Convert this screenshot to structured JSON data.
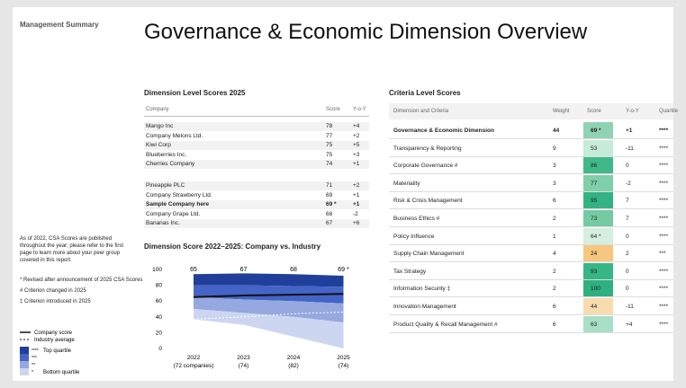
{
  "sidebar": {
    "heading": "Management Summary",
    "note": "As of 2022, CSA Scores are published throughout the year; please refer to the first page to learn more about your peer group covered in this report.",
    "footnotes": [
      "* Revised after announcement of 2025 CSA Scores",
      "# Criterion changed in 2025",
      "‡ Criterion introduced in 2025"
    ]
  },
  "title": "Governance & Economic Dimension Overview",
  "dimension_table": {
    "title": "Dimension Level Scores 2025",
    "columns": [
      "Company",
      "Score",
      "Y-o-Y"
    ],
    "groups": [
      [
        [
          "Mango Inc",
          "78",
          "+4"
        ],
        [
          "Company Melons Ltd.",
          "77",
          "+2"
        ],
        [
          "Kiwi Corp",
          "75",
          "+5"
        ],
        [
          "Blueberries Inc.",
          "75",
          "+3"
        ],
        [
          "Cherries Company",
          "74",
          "+1"
        ]
      ],
      [
        [
          "Pineapple PLC",
          "71",
          "+2"
        ],
        [
          "Company Strawberry Ltd.",
          "69",
          "+1"
        ],
        [
          "Sample Company here",
          "69 *",
          "+1"
        ],
        [
          "Company Grape Ltd.",
          "68",
          "-2"
        ],
        [
          "Bananas Inc.",
          "67",
          "+6"
        ]
      ]
    ],
    "highlight_row": [
      1,
      2
    ]
  },
  "chart_data": {
    "type": "area",
    "title": "Dimension Score 2022–2025: Company vs. Industry",
    "categories": [
      "2022",
      "2023",
      "2024",
      "2025"
    ],
    "category_notes": [
      "(72 companies)",
      "(74)",
      "(82)",
      "(74)"
    ],
    "ylim": [
      0,
      100
    ],
    "yticks": [
      0,
      20,
      40,
      60,
      80,
      100
    ],
    "company": {
      "name": "Company score",
      "color": "#111111",
      "values": [
        65,
        67,
        68,
        69
      ],
      "value_labels": [
        "65",
        "67",
        "68",
        "69 *"
      ]
    },
    "industry": {
      "name": "Industry average",
      "color": "#ffffff",
      "values": [
        37,
        40,
        44,
        46
      ]
    },
    "bands": [
      {
        "name": "Top quartile",
        "symbol": "****",
        "color": "#1f3f9a",
        "upper": [
          94,
          95,
          94,
          92
        ],
        "lower": [
          80,
          80,
          79,
          78
        ]
      },
      {
        "symbol": "***",
        "color": "#4464c8",
        "upper": [
          80,
          80,
          79,
          78
        ],
        "lower": [
          65,
          62,
          60,
          57
        ]
      },
      {
        "symbol": "**",
        "color": "#95a8df",
        "upper": [
          65,
          62,
          60,
          57
        ],
        "lower": [
          50,
          45,
          40,
          33
        ]
      },
      {
        "name": "Bottom quartile",
        "symbol": "*",
        "color": "#cdd6f1",
        "upper": [
          50,
          45,
          40,
          33
        ],
        "lower": [
          37,
          30,
          15,
          0
        ]
      }
    ]
  },
  "criteria_table": {
    "title": "Criteria Level Scores",
    "columns": [
      "Dimension and Criteria",
      "Weight",
      "Score",
      "Y-o-Y",
      "Quartile"
    ],
    "rows": [
      [
        "Governance & Economic Dimension",
        "44",
        "69 *",
        "+1",
        "****"
      ],
      [
        "Transparency & Reporting",
        "9",
        "53",
        "-11",
        "****"
      ],
      [
        "Corporate Governance #",
        "3",
        "86",
        "0",
        "****"
      ],
      [
        "Materiality",
        "3",
        "77",
        "-2",
        "****"
      ],
      [
        "Risk & Crisis Management",
        "6",
        "95",
        "7",
        "****"
      ],
      [
        "Business Ethics #",
        "2",
        "73",
        "7",
        "****"
      ],
      [
        "Policy Influence",
        "1",
        "64 *",
        "0",
        "****"
      ],
      [
        "Supply Chain Management",
        "4",
        "24",
        "2",
        "***"
      ],
      [
        "Tax Strategy",
        "2",
        "93",
        "0",
        "****"
      ],
      [
        "Information Security ‡",
        "2",
        "100",
        "0",
        "****"
      ],
      [
        "Innovation Management",
        "6",
        "44",
        "-11",
        "****"
      ],
      [
        "Product Quality & Recall Management #",
        "6",
        "63",
        "+4",
        "****"
      ]
    ],
    "score_colors": [
      "#8fd3b4",
      "#c6ebd9",
      "#3fb98a",
      "#7fcfa9",
      "#33b383",
      "#74caa2",
      "#d4efe0",
      "#f6c77e",
      "#36b585",
      "#2fb080",
      "#f9dbb0",
      "#a9dfc5"
    ]
  }
}
